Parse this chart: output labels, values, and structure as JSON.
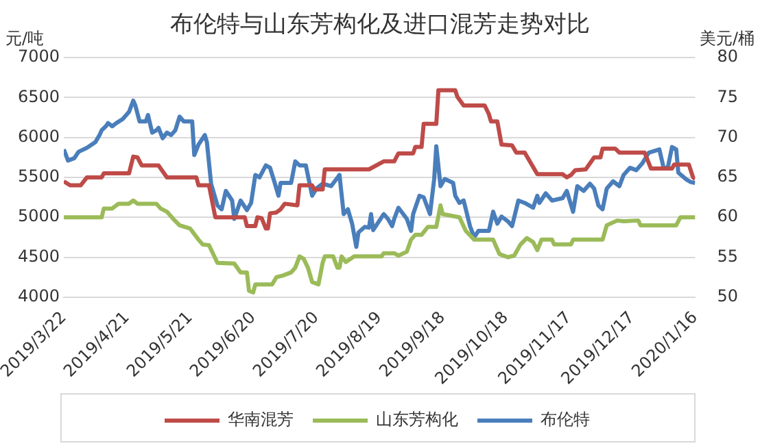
{
  "chart_data": {
    "type": "line",
    "title": "布伦特与山东芳构化及进口混芳走势对比",
    "ylabel": "元/吨",
    "y2label": "美元/桶",
    "xlim": [
      "2019-03-22",
      "2020-01-16"
    ],
    "xticks": [
      {
        "value": "2019-03-22",
        "label": "2019/3/22"
      },
      {
        "value": "2019-04-21",
        "label": "2019/4/21"
      },
      {
        "value": "2019-05-21",
        "label": "2019/5/21"
      },
      {
        "value": "2019-06-20",
        "label": "2019/6/20"
      },
      {
        "value": "2019-07-20",
        "label": "2019/7/20"
      },
      {
        "value": "2019-08-19",
        "label": "2019/8/19"
      },
      {
        "value": "2019-09-18",
        "label": "2019/9/18"
      },
      {
        "value": "2019-10-18",
        "label": "2019/10/18"
      },
      {
        "value": "2019-11-17",
        "label": "2019/11/17"
      },
      {
        "value": "2019-12-17",
        "label": "2019/12/17"
      },
      {
        "value": "2020-01-16",
        "label": "2020/1/16"
      }
    ],
    "ylim": [
      4000,
      7000
    ],
    "yticks": [
      4000,
      4500,
      5000,
      5500,
      6000,
      6500,
      7000
    ],
    "y2lim": [
      50,
      80
    ],
    "y2ticks": [
      50,
      55,
      60,
      65,
      70,
      75,
      80
    ],
    "grid": "y",
    "legend": "bottom",
    "marker": "none",
    "line_style": "solid",
    "series": [
      {
        "name": "华南混芳",
        "color": "#be4b48",
        "x": [
          "2019-03-22",
          "2019-03-25",
          "2019-03-30",
          "2019-04-02",
          "2019-04-09",
          "2019-04-10",
          "2019-04-22",
          "2019-04-24",
          "2019-04-26",
          "2019-04-28",
          "2019-05-06",
          "2019-05-10",
          "2019-05-24",
          "2019-05-25",
          "2019-05-30",
          "2019-06-02",
          "2019-06-16",
          "2019-06-17",
          "2019-06-21",
          "2019-06-22",
          "2019-06-24",
          "2019-06-26",
          "2019-06-27",
          "2019-06-28",
          "2019-07-01",
          "2019-07-03",
          "2019-07-05",
          "2019-07-11",
          "2019-07-12",
          "2019-07-18",
          "2019-07-19",
          "2019-07-23",
          "2019-07-24",
          "2019-08-14",
          "2019-08-21",
          "2019-08-26",
          "2019-08-28",
          "2019-09-04",
          "2019-09-05",
          "2019-09-08",
          "2019-09-09",
          "2019-09-15",
          "2019-09-16",
          "2019-09-24",
          "2019-09-25",
          "2019-09-28",
          "2019-10-08",
          "2019-10-10",
          "2019-10-11",
          "2019-10-14",
          "2019-10-16",
          "2019-10-21",
          "2019-10-23",
          "2019-10-27",
          "2019-11-02",
          "2019-11-14",
          "2019-11-16",
          "2019-11-18",
          "2019-11-20",
          "2019-11-25",
          "2019-11-29",
          "2019-12-02",
          "2019-12-03",
          "2019-12-09",
          "2019-12-11",
          "2019-12-23",
          "2019-12-26",
          "2020-01-05",
          "2020-01-06",
          "2020-01-13",
          "2020-01-15",
          "2020-01-16"
        ],
        "values": [
          5450,
          5400,
          5400,
          5500,
          5500,
          5550,
          5550,
          5760,
          5750,
          5650,
          5650,
          5500,
          5500,
          5400,
          5400,
          5000,
          5000,
          4890,
          4890,
          5000,
          4990,
          4860,
          4860,
          5050,
          5060,
          5100,
          5170,
          5150,
          5400,
          5400,
          5350,
          5350,
          5600,
          5600,
          5700,
          5700,
          5800,
          5800,
          5880,
          5880,
          6170,
          6170,
          6590,
          6590,
          6510,
          6400,
          6400,
          6290,
          6200,
          6200,
          5910,
          5900,
          5810,
          5810,
          5540,
          5540,
          5500,
          5530,
          5590,
          5600,
          5750,
          5750,
          5860,
          5860,
          5810,
          5810,
          5610,
          5610,
          5660,
          5660,
          5500,
          5480
        ]
      },
      {
        "name": "山东芳构化",
        "color": "#9bbb59",
        "x": [
          "2019-03-22",
          "2019-04-09",
          "2019-04-10",
          "2019-04-14",
          "2019-04-17",
          "2019-04-22",
          "2019-04-24",
          "2019-04-26",
          "2019-05-05",
          "2019-05-07",
          "2019-05-10",
          "2019-05-13",
          "2019-05-16",
          "2019-05-21",
          "2019-05-25",
          "2019-05-27",
          "2019-05-30",
          "2019-06-03",
          "2019-06-11",
          "2019-06-14",
          "2019-06-17",
          "2019-06-18",
          "2019-06-20",
          "2019-06-21",
          "2019-06-29",
          "2019-07-01",
          "2019-07-04",
          "2019-07-08",
          "2019-07-10",
          "2019-07-12",
          "2019-07-14",
          "2019-07-16",
          "2019-07-18",
          "2019-07-21",
          "2019-07-23",
          "2019-07-24",
          "2019-07-28",
          "2019-07-30",
          "2019-07-31",
          "2019-08-01",
          "2019-08-03",
          "2019-08-07",
          "2019-08-20",
          "2019-08-21",
          "2019-08-26",
          "2019-08-28",
          "2019-09-01",
          "2019-09-03",
          "2019-09-05",
          "2019-09-08",
          "2019-09-11",
          "2019-09-15",
          "2019-09-17",
          "2019-09-18",
          "2019-09-26",
          "2019-09-29",
          "2019-10-03",
          "2019-10-12",
          "2019-10-15",
          "2019-10-19",
          "2019-10-22",
          "2019-10-25",
          "2019-10-28",
          "2019-10-31",
          "2019-11-02",
          "2019-11-04",
          "2019-11-09",
          "2019-11-10",
          "2019-11-18",
          "2019-11-19",
          "2019-12-03",
          "2019-12-05",
          "2019-12-10",
          "2019-12-13",
          "2019-12-20",
          "2019-12-21",
          "2020-01-07",
          "2020-01-09",
          "2020-01-16"
        ],
        "values": [
          5000,
          5000,
          5110,
          5110,
          5170,
          5170,
          5210,
          5170,
          5170,
          5110,
          5070,
          4980,
          4900,
          4860,
          4720,
          4660,
          4650,
          4430,
          4420,
          4310,
          4310,
          4080,
          4060,
          4160,
          4160,
          4250,
          4270,
          4310,
          4370,
          4510,
          4480,
          4370,
          4190,
          4160,
          4430,
          4510,
          4510,
          4370,
          4370,
          4510,
          4440,
          4510,
          4510,
          4550,
          4550,
          4520,
          4570,
          4720,
          4780,
          4780,
          4880,
          4880,
          5150,
          5040,
          5000,
          4830,
          4720,
          4720,
          4540,
          4500,
          4520,
          4660,
          4740,
          4690,
          4590,
          4720,
          4720,
          4660,
          4660,
          4720,
          4720,
          4900,
          4960,
          4950,
          4960,
          4900,
          4900,
          5000,
          5000
        ]
      },
      {
        "name": "布伦特",
        "color": "#4a7ebb",
        "axis": "y2",
        "x": [
          "2019-03-22",
          "2019-03-24",
          "2019-03-27",
          "2019-03-29",
          "2019-04-02",
          "2019-04-06",
          "2019-04-08",
          "2019-04-09",
          "2019-04-11",
          "2019-04-12",
          "2019-04-14",
          "2019-04-16",
          "2019-04-19",
          "2019-04-22",
          "2019-04-24",
          "2019-04-25",
          "2019-04-27",
          "2019-04-30",
          "2019-05-01",
          "2019-05-03",
          "2019-05-05",
          "2019-05-06",
          "2019-05-08",
          "2019-05-10",
          "2019-05-12",
          "2019-05-14",
          "2019-05-16",
          "2019-05-18",
          "2019-05-22",
          "2019-05-23",
          "2019-05-25",
          "2019-05-28",
          "2019-05-29",
          "2019-05-31",
          "2019-06-03",
          "2019-06-05",
          "2019-06-07",
          "2019-06-10",
          "2019-06-11",
          "2019-06-14",
          "2019-06-17",
          "2019-06-19",
          "2019-06-21",
          "2019-06-23",
          "2019-06-26",
          "2019-06-28",
          "2019-06-30",
          "2019-07-02",
          "2019-07-03",
          "2019-07-08",
          "2019-07-10",
          "2019-07-12",
          "2019-07-15",
          "2019-07-18",
          "2019-07-20",
          "2019-07-23",
          "2019-07-27",
          "2019-07-31",
          "2019-08-02",
          "2019-08-04",
          "2019-08-06",
          "2019-08-08",
          "2019-08-09",
          "2019-08-12",
          "2019-08-14",
          "2019-08-15",
          "2019-08-16",
          "2019-08-21",
          "2019-08-23",
          "2019-08-25",
          "2019-08-26",
          "2019-08-28",
          "2019-09-01",
          "2019-09-03",
          "2019-09-04",
          "2019-09-07",
          "2019-09-09",
          "2019-09-12",
          "2019-09-14",
          "2019-09-15",
          "2019-09-17",
          "2019-09-19",
          "2019-09-23",
          "2019-09-24",
          "2019-09-26",
          "2019-09-28",
          "2019-10-01",
          "2019-10-03",
          "2019-10-05",
          "2019-10-10",
          "2019-10-12",
          "2019-10-14",
          "2019-10-16",
          "2019-10-19",
          "2019-10-21",
          "2019-10-24",
          "2019-10-27",
          "2019-10-31",
          "2019-11-02",
          "2019-11-03",
          "2019-11-06",
          "2019-11-09",
          "2019-11-14",
          "2019-11-16",
          "2019-11-19",
          "2019-11-21",
          "2019-11-24",
          "2019-11-27",
          "2019-11-29",
          "2019-12-01",
          "2019-12-03",
          "2019-12-05",
          "2019-12-08",
          "2019-12-11",
          "2019-12-13",
          "2019-12-16",
          "2019-12-19",
          "2019-12-22",
          "2019-12-25",
          "2019-12-30",
          "2020-01-01",
          "2020-01-03",
          "2020-01-05",
          "2020-01-07",
          "2020-01-08",
          "2020-01-12",
          "2020-01-14",
          "2020-01-16"
        ],
        "values": [
          68.5,
          67.1,
          67.4,
          68.2,
          68.7,
          69.4,
          70.3,
          70.9,
          71.4,
          71.8,
          71.4,
          71.8,
          72.3,
          73.2,
          74.6,
          74.0,
          72.0,
          72.0,
          72.8,
          70.6,
          70.9,
          71.2,
          69.9,
          70.6,
          70.3,
          70.9,
          72.6,
          72.0,
          72.0,
          67.8,
          69.1,
          70.3,
          69.4,
          64.2,
          61.5,
          61.0,
          63.3,
          62.1,
          59.8,
          62.1,
          60.9,
          61.8,
          65.3,
          65.0,
          66.5,
          66.2,
          64.5,
          62.7,
          64.3,
          64.3,
          67.0,
          66.5,
          66.5,
          62.7,
          63.6,
          64.2,
          63.9,
          65.3,
          60.4,
          61.0,
          59.2,
          56.3,
          58.1,
          58.8,
          58.7,
          60.4,
          58.4,
          60.4,
          59.8,
          58.9,
          59.8,
          61.2,
          59.8,
          58.3,
          60.4,
          62.7,
          62.5,
          60.4,
          64.8,
          68.9,
          63.9,
          64.8,
          64.3,
          62.7,
          61.8,
          62.1,
          58.9,
          57.5,
          58.3,
          58.3,
          60.7,
          59.2,
          60.1,
          59.5,
          58.9,
          62.1,
          61.8,
          61.2,
          62.7,
          61.8,
          63.0,
          62.1,
          62.4,
          63.3,
          60.7,
          63.9,
          63.3,
          64.2,
          63.6,
          61.5,
          61.0,
          63.6,
          64.5,
          63.9,
          65.3,
          66.2,
          65.9,
          66.8,
          68.1,
          68.5,
          66.2,
          66.2,
          68.8,
          68.5,
          65.6,
          64.7,
          64.4,
          64.3
        ]
      }
    ]
  }
}
